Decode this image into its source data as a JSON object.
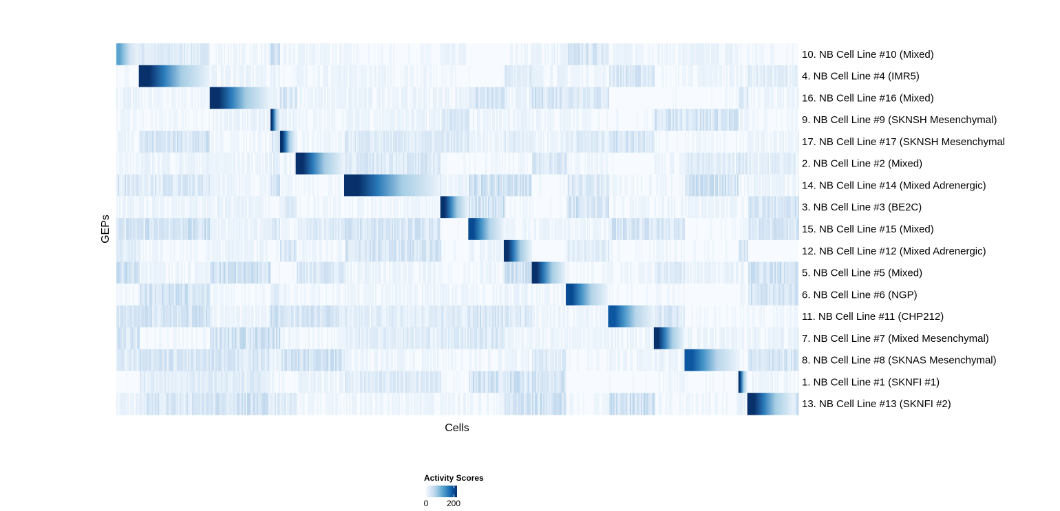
{
  "chart_data": {
    "type": "heatmap",
    "xlabel": "Cells",
    "ylabel": "GEPs",
    "x_tick_labels": false,
    "grid": false,
    "colormap": [
      "#f7fbff",
      "#deebf7",
      "#c6dbef",
      "#9ecae1",
      "#6baed6",
      "#4292c6",
      "#2171b5",
      "#08519c",
      "#08306b"
    ],
    "legend": {
      "title": "Activity Scores",
      "ticks": [
        "0",
        "200"
      ],
      "range": [
        0,
        200
      ],
      "placement": "bottom"
    },
    "rows": [
      {
        "label": "10. NB Cell Line #10 (Mixed)",
        "cell_fraction": 0.033,
        "peak": 0.55
      },
      {
        "label": "4. NB Cell Line #4 (IMR5)",
        "cell_fraction": 0.104,
        "peak": 1
      },
      {
        "label": "16. NB Cell Line #16 (Mixed)",
        "cell_fraction": 0.089,
        "peak": 1
      },
      {
        "label": "9. NB Cell Line #9 (SKNSH Mesenchymal)",
        "cell_fraction": 0.014,
        "peak": 1
      },
      {
        "label": "17. NB Cell Line #17 (SKNSH Mesenchymal",
        "cell_fraction": 0.023,
        "peak": 1
      },
      {
        "label": "2. NB Cell Line #2 (Mixed)",
        "cell_fraction": 0.071,
        "peak": 1
      },
      {
        "label": "14. NB Cell Line #14 (Mixed Adrenergic)",
        "cell_fraction": 0.141,
        "peak": 1
      },
      {
        "label": "3. NB Cell Line #3 (BE2C)",
        "cell_fraction": 0.041,
        "peak": 1
      },
      {
        "label": "15. NB Cell Line #15 (Mixed)",
        "cell_fraction": 0.052,
        "peak": 0.9
      },
      {
        "label": "12. NB Cell Line #12 (Mixed Adrenergic)",
        "cell_fraction": 0.041,
        "peak": 1
      },
      {
        "label": "5. NB Cell Line #5 (Mixed)",
        "cell_fraction": 0.05,
        "peak": 1
      },
      {
        "label": "6. NB Cell Line #6 (NGP)",
        "cell_fraction": 0.062,
        "peak": 0.9
      },
      {
        "label": "11. NB Cell Line #11 (CHP212)",
        "cell_fraction": 0.067,
        "peak": 0.85
      },
      {
        "label": "7. NB Cell Line #7 (Mixed Mesenchymal)",
        "cell_fraction": 0.045,
        "peak": 1
      },
      {
        "label": "8. NB Cell Line #8 (SKNAS Mesenchymal)",
        "cell_fraction": 0.079,
        "peak": 0.85
      },
      {
        "label": "1. NB Cell Line #1 (SKNFI #1)",
        "cell_fraction": 0.013,
        "peak": 1
      },
      {
        "label": "13. NB Cell Line #13 (SKNFI #2)",
        "cell_fraction": 0.069,
        "peak": 1
      }
    ]
  }
}
